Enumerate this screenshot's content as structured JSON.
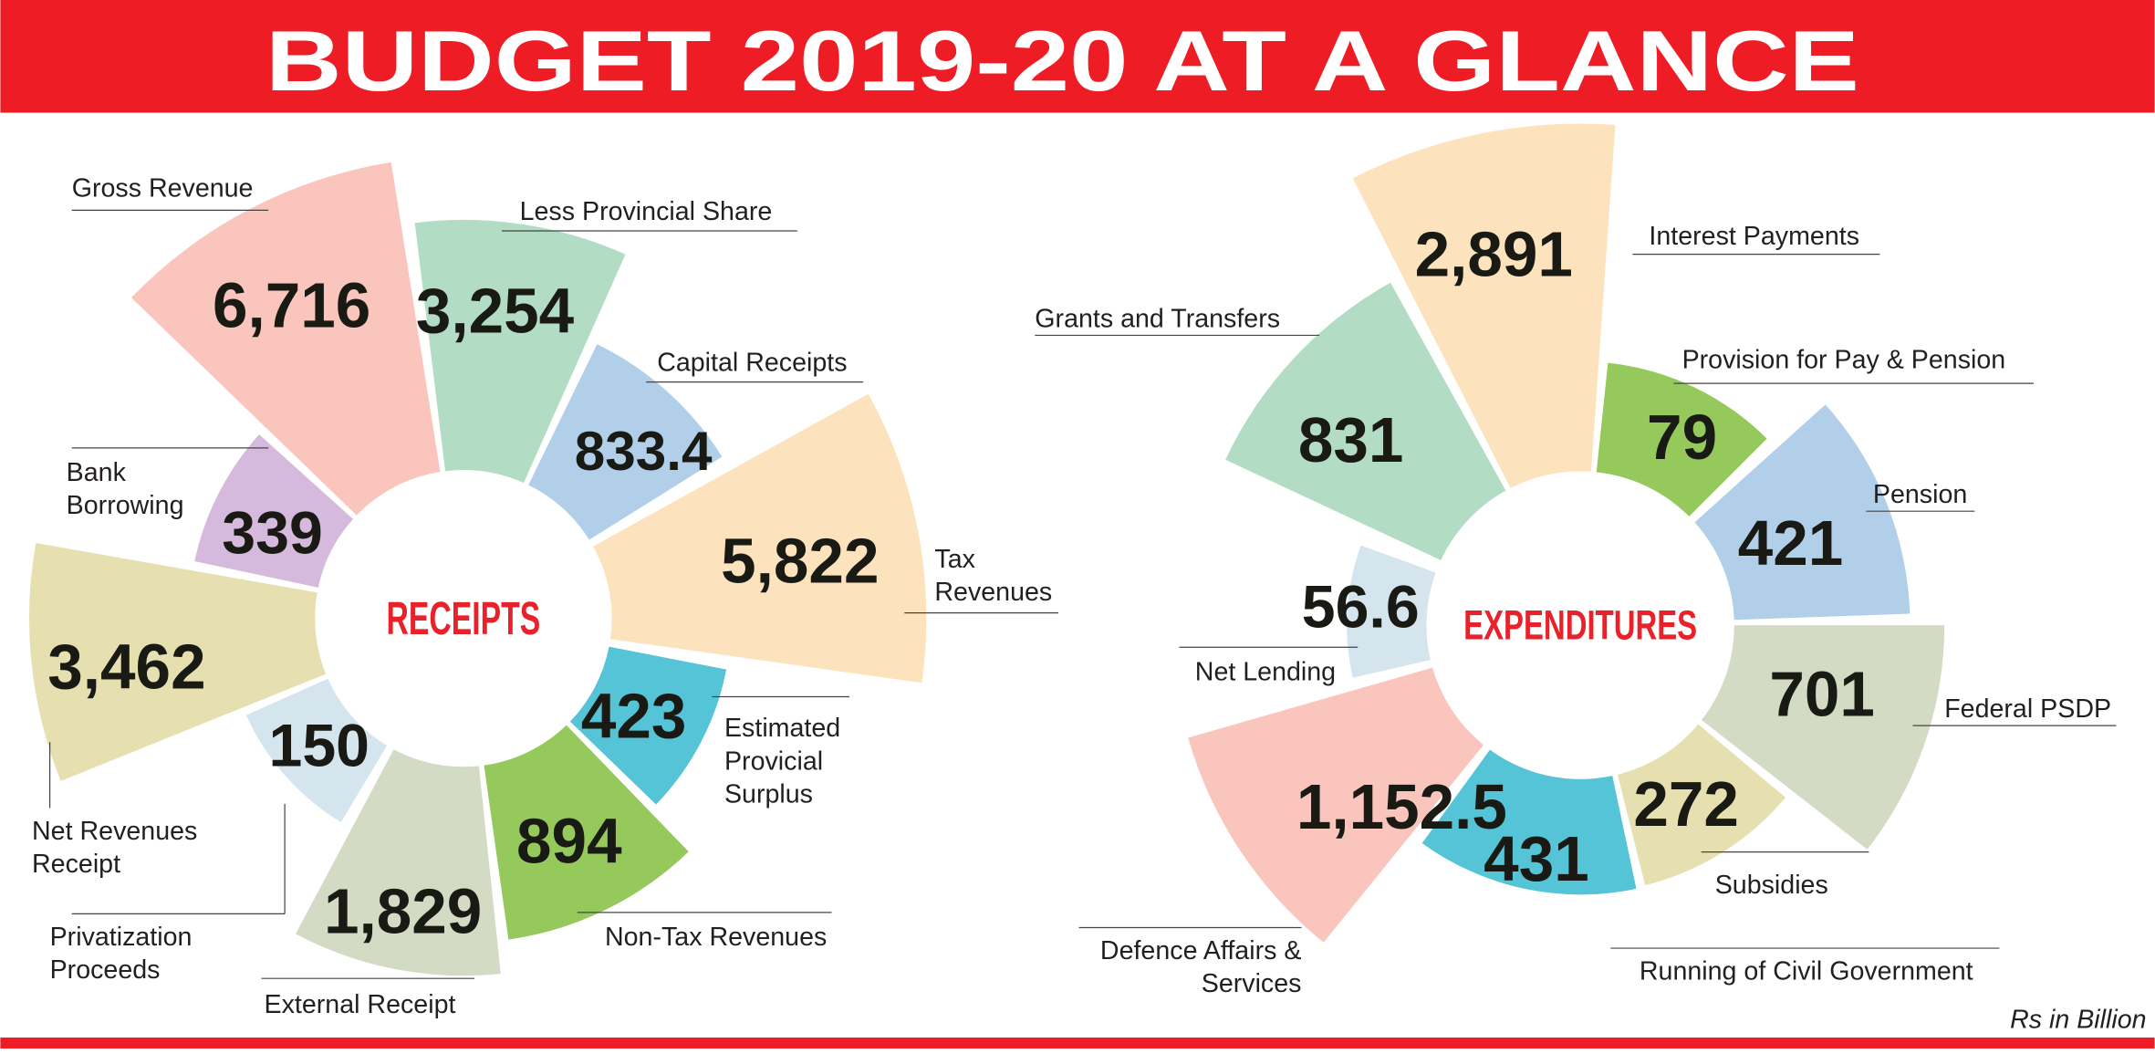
{
  "title": "BUDGET 2019-20 AT A GLANCE",
  "unit_note": "Rs in Billion",
  "colors": {
    "banner": "#ee1c25",
    "center_title": "#e8222a"
  },
  "chart_data": [
    {
      "type": "pie",
      "title": "RECEIPTS",
      "categories": [
        "Gross Revenue",
        "Less Provincial Share",
        "Capital Receipts",
        "Tax Revenues",
        "Estimated Provicial Surplus",
        "Non-Tax Revenues",
        "External Receipt",
        "Privatization Proceeds",
        "Net Revenues Receipt",
        "Bank Borrowing"
      ],
      "values": [
        6716,
        3254,
        833.4,
        5822,
        423,
        894,
        1829,
        150,
        3462,
        339
      ],
      "value_labels": [
        "6,716",
        "3,254",
        "833.4",
        "5,822",
        "423",
        "894",
        "1,829",
        "150",
        "3,462",
        "339"
      ],
      "label_lines": [
        [
          "Gross Revenue"
        ],
        [
          "Less Provincial Share"
        ],
        [
          "Capital Receipts"
        ],
        [
          "Tax",
          "Revenues"
        ],
        [
          "Estimated",
          "Provicial",
          "Surplus"
        ],
        [
          "Non-Tax Revenues"
        ],
        [
          "External Receipt"
        ],
        [
          "Privatization",
          "Proceeds"
        ],
        [
          "Net Revenues",
          "Receipt"
        ],
        [
          "Bank",
          "Borrowing"
        ]
      ],
      "colors": [
        "#f9c5bc",
        "#b3dcc4",
        "#b2cfea",
        "#fde3bd",
        "#55c4d7",
        "#96c95b",
        "#d3dbc5",
        "#d5e5ee",
        "#e6e0b1",
        "#d6badd"
      ]
    },
    {
      "type": "pie",
      "title": "EXPENDITURES",
      "categories": [
        "Interest Payments",
        "Provision for Pay & Pension",
        "Pension",
        "Federal PSDP",
        "Subsidies",
        "Running of Civil Government",
        "Defence Affairs & Services",
        "Net Lending",
        "Grants and Transfers"
      ],
      "values": [
        2891,
        79,
        421,
        701,
        272,
        431,
        1152.5,
        56.6,
        831
      ],
      "value_labels": [
        "2,891",
        "79",
        "421",
        "701",
        "272",
        "431",
        "1,152.5",
        "56.6",
        "831"
      ],
      "label_lines": [
        [
          "Interest Payments"
        ],
        [
          "Provision for Pay & Pension"
        ],
        [
          "Pension"
        ],
        [
          "Federal PSDP"
        ],
        [
          "Subsidies"
        ],
        [
          "Running of Civil Government"
        ],
        [
          "Defence Affairs &",
          "Services"
        ],
        [
          "Net Lending"
        ],
        [
          "Grants and Transfers"
        ]
      ],
      "colors": [
        "#fde3bd",
        "#96c95b",
        "#b2cfea",
        "#d3dbc5",
        "#e6e0b1",
        "#55c4d7",
        "#f9c5bc",
        "#d5e5ee",
        "#b3dcc4"
      ]
    }
  ]
}
